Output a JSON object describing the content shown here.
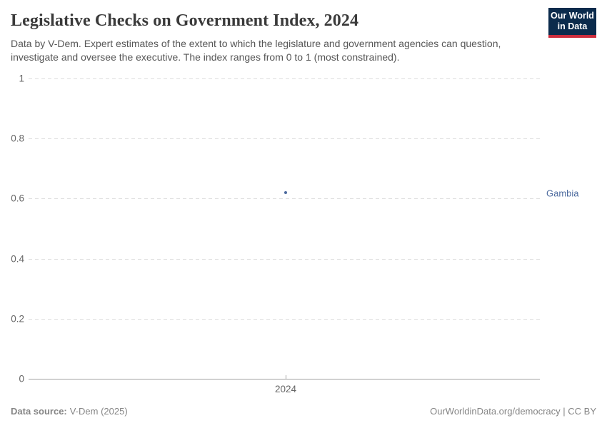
{
  "header": {
    "title": "Legislative Checks on Government Index, 2024",
    "subtitle": "Data by V-Dem. Expert estimates of the extent to which the legislature and government agencies can question, investigate and oversee the executive. The index ranges from 0 to 1 (most constrained).",
    "logo": {
      "line1": "Our World",
      "line2": "in Data",
      "bg_color": "#0b2b4c",
      "bar_color": "#cc2d3d"
    }
  },
  "chart_data": {
    "type": "scatter",
    "title": "Legislative Checks on Government Index, 2024",
    "x": [
      2024
    ],
    "series": [
      {
        "name": "Gambia",
        "color": "#4c6a9e",
        "values": [
          0.62
        ]
      }
    ],
    "x_ticks": [
      "2024"
    ],
    "y_ticks": [
      0,
      0.2,
      0.4,
      0.6,
      0.8,
      1
    ],
    "ylim": [
      0,
      1
    ],
    "xlabel": "",
    "ylabel": "",
    "grid": "horizontal-dashed",
    "legend_position": "right-inline-label"
  },
  "footer": {
    "source_label": "Data source:",
    "source_value": "V-Dem (2025)",
    "attribution": "OurWorldinData.org/democracy | CC BY"
  }
}
